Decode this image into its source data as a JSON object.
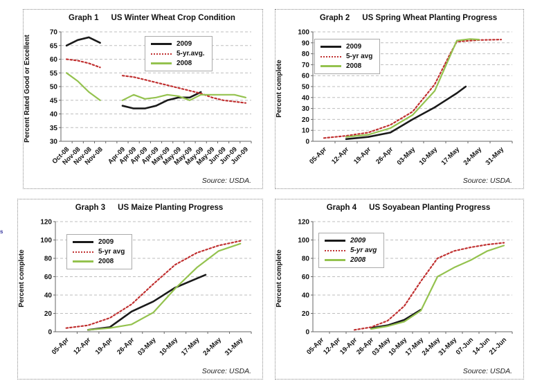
{
  "artifact_text": "s",
  "chart_data": [
    {
      "type": "line",
      "title_prefix": "Graph 1",
      "title": "US Winter Wheat Crop Condition",
      "ylabel": "Percent Rated Good or Excellent",
      "ylim": [
        30,
        70
      ],
      "ytick_step": 5,
      "grid": "horizontal-dashed",
      "legend_position": "top-right",
      "source": "Source: USDA.",
      "categories": [
        "Oct-08",
        "Nov-08",
        "Nov-08",
        "Nov-08",
        "",
        "Apr-09",
        "Apr-09",
        "Apr-09",
        "Apr-09",
        "May-09",
        "May-09",
        "May-09",
        "May-09",
        "May-09",
        "Jun-09",
        "Jun-09",
        "Jun-09"
      ],
      "series": [
        {
          "name": "2009",
          "color": "#1a1a1a",
          "style": "solid",
          "width": 2.6,
          "segments": [
            [
              [
                0,
                65
              ],
              [
                1,
                67
              ],
              [
                2,
                68
              ],
              [
                3,
                66
              ]
            ],
            [
              [
                5,
                43
              ],
              [
                6,
                42
              ],
              [
                7,
                42
              ],
              [
                8,
                43
              ],
              [
                9,
                45
              ],
              [
                10,
                46
              ],
              [
                11,
                46
              ],
              [
                12,
                48
              ]
            ]
          ]
        },
        {
          "name": "5-yr.avg.",
          "color": "#c03030",
          "style": "dotted",
          "width": 2.2,
          "segments": [
            [
              [
                0,
                60
              ],
              [
                1,
                59.5
              ],
              [
                2,
                58.5
              ],
              [
                3,
                57
              ]
            ],
            [
              [
                5,
                54
              ],
              [
                6,
                53.5
              ],
              [
                7,
                52.5
              ],
              [
                8,
                51.5
              ],
              [
                9,
                50.5
              ],
              [
                10,
                49.5
              ],
              [
                11,
                48.5
              ],
              [
                12,
                47.5
              ],
              [
                13,
                46
              ],
              [
                14,
                45
              ],
              [
                15,
                44.5
              ],
              [
                16,
                44
              ]
            ]
          ]
        },
        {
          "name": "2008",
          "color": "#94c24e",
          "style": "solid",
          "width": 2.2,
          "segments": [
            [
              [
                0,
                55
              ],
              [
                1,
                52
              ],
              [
                2,
                48
              ],
              [
                3,
                45
              ]
            ],
            [
              [
                5,
                45
              ],
              [
                6,
                47
              ],
              [
                7,
                45.5
              ],
              [
                8,
                46
              ],
              [
                9,
                47
              ],
              [
                10,
                46.5
              ],
              [
                11,
                45
              ],
              [
                12,
                47
              ],
              [
                13,
                47
              ],
              [
                14,
                47
              ],
              [
                15,
                47
              ],
              [
                16,
                46
              ]
            ]
          ]
        }
      ]
    },
    {
      "type": "line",
      "title_prefix": "Graph 2",
      "title": "US Spring Wheat Planting Progress",
      "ylabel": "Percent complete",
      "ylim": [
        0,
        100
      ],
      "ytick_step": 10,
      "grid": "horizontal-dashed",
      "legend_position": "top-left",
      "source": "Source: USDA.",
      "categories": [
        "05-Apr",
        "12-Apr",
        "19-Apr",
        "26-Apr",
        "03-May",
        "10-May",
        "17-May",
        "24-May",
        "31-May"
      ],
      "series": [
        {
          "name": "2009",
          "color": "#1a1a1a",
          "style": "solid",
          "width": 2.6,
          "segments": [
            [
              [
                1,
                2
              ],
              [
                2,
                4
              ],
              [
                3,
                8
              ],
              [
                4,
                20
              ],
              [
                5,
                31
              ],
              [
                6,
                44
              ],
              [
                6.4,
                50
              ]
            ]
          ]
        },
        {
          "name": "5-yr avg",
          "color": "#c03030",
          "style": "dotted",
          "width": 2.2,
          "segments": [
            [
              [
                0,
                3
              ],
              [
                1,
                5
              ],
              [
                2,
                8
              ],
              [
                3,
                15
              ],
              [
                4,
                27
              ],
              [
                5,
                52
              ],
              [
                5.7,
                80
              ],
              [
                6,
                91
              ],
              [
                7,
                92.5
              ],
              [
                8,
                93
              ]
            ]
          ]
        },
        {
          "name": "2008",
          "color": "#94c24e",
          "style": "solid",
          "width": 2.2,
          "segments": [
            [
              [
                1,
                4
              ],
              [
                2,
                6
              ],
              [
                3,
                12
              ],
              [
                4,
                24
              ],
              [
                5,
                46
              ],
              [
                6,
                92
              ],
              [
                6.6,
                93.5
              ],
              [
                7,
                93
              ]
            ]
          ]
        }
      ]
    },
    {
      "type": "line",
      "title_prefix": "Graph 3",
      "title": "US Maize Planting Progress",
      "ylabel": "Percent complete",
      "ylim": [
        0,
        120
      ],
      "ytick_step": 20,
      "grid": "horizontal-dashed",
      "legend_position": "top-left",
      "source": "Source: USDA.",
      "categories": [
        "05-Apr",
        "12-Apr",
        "19-Apr",
        "26-Apr",
        "03-May",
        "10-May",
        "17-May",
        "24-May",
        "31-May"
      ],
      "series": [
        {
          "name": "2009",
          "color": "#1a1a1a",
          "style": "solid",
          "width": 2.6,
          "segments": [
            [
              [
                1,
                2
              ],
              [
                2,
                5
              ],
              [
                3,
                22
              ],
              [
                4,
                33
              ],
              [
                5,
                48
              ],
              [
                6,
                58
              ],
              [
                6.4,
                62
              ]
            ]
          ]
        },
        {
          "name": "5-yr avg",
          "color": "#c03030",
          "style": "dotted",
          "width": 2.2,
          "segments": [
            [
              [
                0,
                4
              ],
              [
                1,
                7
              ],
              [
                2,
                15
              ],
              [
                3,
                30
              ],
              [
                4,
                52
              ],
              [
                5,
                73
              ],
              [
                6,
                86
              ],
              [
                7,
                94
              ],
              [
                8,
                99
              ]
            ]
          ]
        },
        {
          "name": "2008",
          "color": "#94c24e",
          "style": "solid",
          "width": 2.2,
          "segments": [
            [
              [
                1,
                2
              ],
              [
                2,
                4
              ],
              [
                3,
                8
              ],
              [
                4,
                21
              ],
              [
                5,
                47
              ],
              [
                6,
                70
              ],
              [
                7,
                88
              ],
              [
                8,
                96
              ]
            ]
          ]
        }
      ]
    },
    {
      "type": "line",
      "title_prefix": "Graph 4",
      "title": "US Soyabean Planting Progress",
      "ylabel": "Percent complete",
      "ylim": [
        0,
        120
      ],
      "ytick_step": 20,
      "grid": "horizontal-dashed",
      "legend_position": "top-left",
      "legend_italic": true,
      "source": "Source: USDA.",
      "categories": [
        "05-Apr",
        "12-Apr",
        "19-Apr",
        "26-Apr",
        "03-May",
        "10-May",
        "17-May",
        "24-May",
        "31-May",
        "07-Jun",
        "14-Jun",
        "21-Jun"
      ],
      "series": [
        {
          "name": "2009",
          "color": "#1a1a1a",
          "style": "solid",
          "width": 2.6,
          "segments": [
            [
              [
                3,
                4
              ],
              [
                4,
                7
              ],
              [
                5,
                13
              ],
              [
                6,
                24
              ]
            ]
          ]
        },
        {
          "name": "5-yr avg",
          "color": "#c03030",
          "style": "dotted",
          "width": 2.2,
          "segments": [
            [
              [
                2,
                2
              ],
              [
                3,
                5
              ],
              [
                4,
                12
              ],
              [
                5,
                28
              ],
              [
                6,
                55
              ],
              [
                7,
                80
              ],
              [
                8,
                88
              ],
              [
                9,
                92
              ],
              [
                10,
                95
              ],
              [
                11,
                97
              ]
            ]
          ]
        },
        {
          "name": "2008",
          "color": "#94c24e",
          "style": "solid",
          "width": 2.2,
          "segments": [
            [
              [
                3,
                3
              ],
              [
                4,
                6
              ],
              [
                5,
                11
              ],
              [
                6,
                23
              ],
              [
                7,
                60
              ],
              [
                8,
                70
              ],
              [
                9,
                78
              ],
              [
                10,
                88
              ],
              [
                11,
                94
              ]
            ]
          ]
        }
      ]
    }
  ]
}
